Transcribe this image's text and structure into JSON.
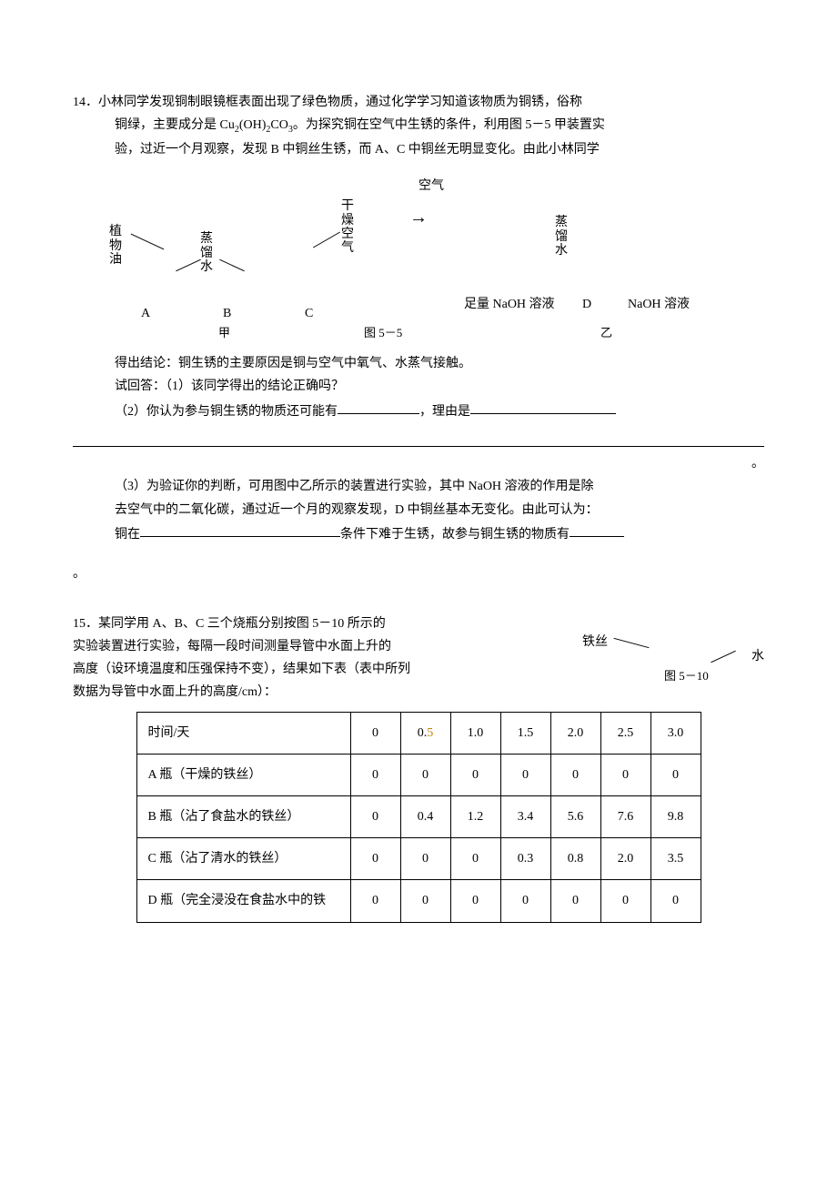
{
  "q14": {
    "num": "14．",
    "p1a": "小林同学发现铜制眼镜框表面出现了绿色物质，通过化学学习知道该物质为铜锈，俗称",
    "p1b_pre": "铜绿，主要成分是 Cu",
    "p1b_sub1": "2",
    "p1b_mid1": "(OH)",
    "p1b_sub2": "2",
    "p1b_mid2": "CO",
    "p1b_sub3": "3",
    "p1b_post": "。为探究铜在空气中生锈的条件，利用图 5－5 甲装置实",
    "p1c": "验，过近一个月观察，发现 B 中铜丝生锈，而 A、C 中铜丝无明显变化。由此小林同学",
    "diagram": {
      "plant_oil": "植\n物\n油",
      "distilled_water": "蒸\n馏\n水",
      "dry_air": "干\n燥\n空\n气",
      "air": "空气",
      "distilled_water2": "蒸\n馏\n水",
      "naoh_left": "足量 NaOH 溶液",
      "D": "D",
      "naoh_right": "NaOH 溶液",
      "A": "A",
      "B": "B",
      "C": "C",
      "cap_left": "甲",
      "cap_mid": "图 5－5",
      "cap_right": "乙"
    },
    "conc": "得出结论：铜生锈的主要原因是铜与空气中氧气、水蒸气接触。",
    "q1": "试回答：（1）该同学得出的结论正确吗？",
    "q2a": "（2）你认为参与铜生锈的物质还可能有",
    "q2b": "，理由是",
    "q3a": "（3）为验证你的判断，可用图中乙所示的装置进行实验，其中 NaOH 溶液的作用是除",
    "q3b": "去空气中的二氧化碳，通过近一个月的观察发现，D 中铜丝基本无变化。由此可认为：",
    "q3c_pre": "铜在",
    "q3c_mid": "条件下难于生锈，故参与铜生锈的物质有",
    "period": "。"
  },
  "q15": {
    "num": "15．",
    "p1": "某同学用 A、B、C 三个烧瓶分别按图 5－10 所示的",
    "p2": "实验装置进行实验，每隔一段时间测量导管中水面上升的",
    "p3": "高度（设环境温度和压强保持不变），结果如下表（表中所列",
    "p4": "数据为导管中水面上升的高度/cm）：",
    "fig": {
      "iron": "铁丝",
      "water": "水",
      "cap": "图 5－10"
    },
    "table": {
      "header": [
        "时间/天",
        "0",
        "0.5",
        "1.0",
        "1.5",
        "2.0",
        "2.5",
        "3.0"
      ],
      "rows": [
        {
          "label": "A 瓶（干燥的铁丝）",
          "vals": [
            "0",
            "0",
            "0",
            "0",
            "0",
            "0",
            "0"
          ]
        },
        {
          "label": "B 瓶（沾了食盐水的铁丝）",
          "vals": [
            "0",
            "0.4",
            "1.2",
            "3.4",
            "5.6",
            "7.6",
            "9.8"
          ]
        },
        {
          "label": "C 瓶（沾了清水的铁丝）",
          "vals": [
            "0",
            "0",
            "0",
            "0.3",
            "0.8",
            "2.0",
            "3.5"
          ]
        },
        {
          "label": "D 瓶（完全浸没在食盐水中的铁",
          "vals": [
            "0",
            "0",
            "0",
            "0",
            "0",
            "0",
            "0"
          ]
        }
      ],
      "hl_col": 2
    }
  }
}
